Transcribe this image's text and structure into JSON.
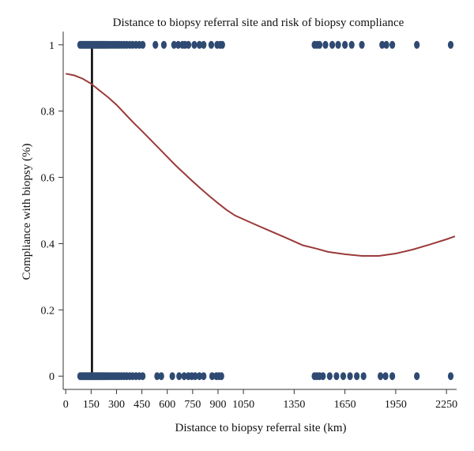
{
  "chart_data": {
    "type": "scatter",
    "title": "Distance to biopsy referral site and risk of biopsy compliance",
    "xlabel": "Distance to biopsy referral site (km)",
    "ylabel": "Compliance with biopsy (%)",
    "xlim": [
      -15,
      2310
    ],
    "ylim": [
      -0.04,
      1.04
    ],
    "x_ticks": [
      0,
      150,
      300,
      450,
      600,
      750,
      900,
      1050,
      1350,
      1650,
      1950,
      2250
    ],
    "x_tick_labels": [
      "0",
      "150",
      "300",
      "450",
      "600",
      "750",
      "900",
      "1050",
      "1350",
      "1650",
      "1950",
      "2250"
    ],
    "y_ticks": [
      0,
      0.2,
      0.4,
      0.6,
      0.8,
      1
    ],
    "y_tick_labels": [
      "0",
      "0.2",
      "0.4",
      "0.6",
      "0.8",
      "1"
    ],
    "grid": false,
    "legend": "none",
    "vertical_line_x": 155,
    "points_y1": [
      85,
      92,
      100,
      108,
      115,
      122,
      130,
      138,
      145,
      152,
      160,
      168,
      175,
      183,
      190,
      198,
      205,
      213,
      220,
      228,
      236,
      245,
      255,
      265,
      278,
      290,
      302,
      316,
      330,
      345,
      360,
      378,
      395,
      415,
      435,
      455,
      530,
      580,
      640,
      665,
      690,
      705,
      725,
      760,
      790,
      815,
      860,
      895,
      912,
      925,
      1470,
      1485,
      1500,
      1535,
      1575,
      1610,
      1650,
      1690,
      1750,
      1870,
      1895,
      1930,
      2075,
      2275
    ],
    "points_y0": [
      85,
      92,
      100,
      108,
      115,
      122,
      130,
      138,
      145,
      152,
      160,
      168,
      175,
      183,
      190,
      198,
      205,
      213,
      220,
      228,
      236,
      245,
      255,
      265,
      278,
      290,
      302,
      316,
      330,
      345,
      360,
      378,
      395,
      415,
      435,
      455,
      540,
      565,
      630,
      670,
      700,
      725,
      745,
      765,
      790,
      815,
      865,
      890,
      905,
      920,
      1470,
      1485,
      1500,
      1520,
      1560,
      1600,
      1640,
      1680,
      1720,
      1760,
      1860,
      1890,
      1930,
      2075,
      2275
    ],
    "curve": {
      "x": [
        0,
        50,
        100,
        150,
        200,
        250,
        300,
        350,
        400,
        450,
        500,
        550,
        600,
        650,
        700,
        750,
        800,
        850,
        900,
        950,
        1000,
        1100,
        1200,
        1300,
        1400,
        1480,
        1550,
        1650,
        1750,
        1850,
        1950,
        2050,
        2150,
        2250,
        2300
      ],
      "y": [
        0.913,
        0.908,
        0.898,
        0.883,
        0.862,
        0.842,
        0.819,
        0.792,
        0.765,
        0.74,
        0.714,
        0.688,
        0.662,
        0.636,
        0.612,
        0.588,
        0.565,
        0.543,
        0.522,
        0.502,
        0.485,
        0.462,
        0.44,
        0.418,
        0.395,
        0.385,
        0.375,
        0.368,
        0.363,
        0.363,
        0.37,
        0.382,
        0.397,
        0.413,
        0.422
      ]
    },
    "colors": {
      "points": "#2f4a72",
      "curve": "#9b3a3a",
      "vline": "#000000",
      "axis": "#333333"
    }
  }
}
